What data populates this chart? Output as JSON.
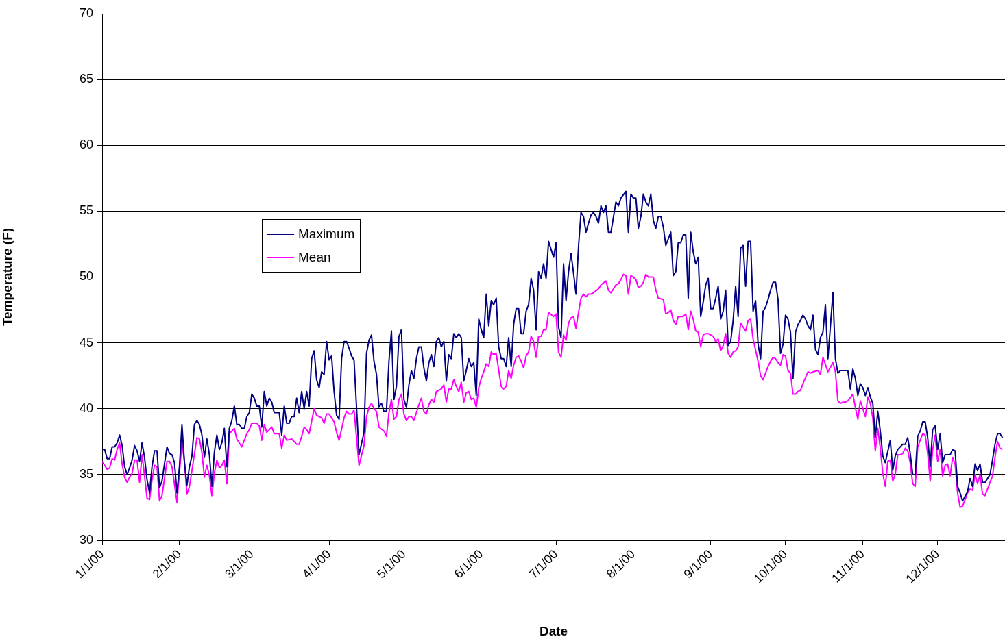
{
  "chart_data": {
    "type": "line",
    "xlabel": "Date",
    "ylabel": "Temperature (F)",
    "ylim": [
      30,
      70
    ],
    "yticks": [
      30,
      35,
      40,
      45,
      50,
      55,
      60,
      65,
      70
    ],
    "xlim": [
      "2000-01-01",
      "2000-12-28"
    ],
    "xticks": [
      {
        "value": "2000-01-01",
        "label": "1/1/00"
      },
      {
        "value": "2000-02-01",
        "label": "2/1/00"
      },
      {
        "value": "2000-03-01",
        "label": "3/1/00"
      },
      {
        "value": "2000-04-01",
        "label": "4/1/00"
      },
      {
        "value": "2000-05-01",
        "label": "5/1/00"
      },
      {
        "value": "2000-06-01",
        "label": "6/1/00"
      },
      {
        "value": "2000-07-01",
        "label": "7/1/00"
      },
      {
        "value": "2000-08-01",
        "label": "8/1/00"
      },
      {
        "value": "2000-09-01",
        "label": "9/1/00"
      },
      {
        "value": "2000-10-01",
        "label": "10/1/00"
      },
      {
        "value": "2000-11-01",
        "label": "11/1/00"
      },
      {
        "value": "2000-12-01",
        "label": "12/1/00"
      }
    ],
    "grid": "y",
    "legend": "left",
    "marker": "none",
    "line_style": "solid",
    "series": [
      {
        "name": "Maximum",
        "color": "#000080",
        "x": [
          "2000-01-01",
          "2000-01-02",
          "2000-01-03",
          "2000-01-04",
          "2000-01-05",
          "2000-01-06",
          "2000-01-07",
          "2000-01-08",
          "2000-01-09",
          "2000-01-10",
          "2000-01-11",
          "2000-01-12",
          "2000-01-13",
          "2000-01-14",
          "2000-01-15",
          "2000-01-16",
          "2000-01-17",
          "2000-01-18",
          "2000-01-19",
          "2000-01-20",
          "2000-01-21",
          "2000-01-22",
          "2000-01-23",
          "2000-01-24",
          "2000-01-25",
          "2000-01-27",
          "2000-01-28",
          "2000-01-29",
          "2000-01-30",
          "2000-01-31",
          "2000-02-01",
          "2000-02-02",
          "2000-02-03",
          "2000-02-04",
          "2000-02-05",
          "2000-02-06",
          "2000-02-07",
          "2000-02-08",
          "2000-02-09",
          "2000-02-10",
          "2000-02-11",
          "2000-02-12",
          "2000-02-13",
          "2000-02-14",
          "2000-02-15",
          "2000-02-16",
          "2000-02-17",
          "2000-02-18",
          "2000-02-19",
          "2000-02-20",
          "2000-02-21",
          "2000-02-22",
          "2000-02-23",
          "2000-02-24",
          "2000-02-25",
          "2000-02-26",
          "2000-02-27",
          "2000-02-28",
          "2000-02-29",
          "2000-03-01",
          "2000-03-02",
          "2000-03-03",
          "2000-03-04",
          "2000-03-05",
          "2000-03-06",
          "2000-03-07",
          "2000-03-08",
          "2000-03-09",
          "2000-03-10",
          "2000-03-12",
          "2000-03-13",
          "2000-03-14",
          "2000-03-15",
          "2000-03-16",
          "2000-03-17",
          "2000-03-18",
          "2000-03-19",
          "2000-03-20",
          "2000-03-21",
          "2000-03-22",
          "2000-03-23",
          "2000-03-24",
          "2000-03-25",
          "2000-03-26",
          "2000-03-27",
          "2000-03-28",
          "2000-03-29",
          "2000-03-30",
          "2000-03-31",
          "2000-04-01",
          "2000-04-02",
          "2000-04-03",
          "2000-04-04",
          "2000-04-05",
          "2000-04-06",
          "2000-04-07",
          "2000-04-08",
          "2000-04-09",
          "2000-04-10",
          "2000-04-11",
          "2000-04-13",
          "2000-04-15",
          "2000-04-16",
          "2000-04-17",
          "2000-04-18",
          "2000-04-19",
          "2000-04-20",
          "2000-04-21",
          "2000-04-22",
          "2000-04-23",
          "2000-04-24",
          "2000-04-25",
          "2000-04-26",
          "2000-04-27",
          "2000-04-28",
          "2000-04-29",
          "2000-04-30",
          "2000-05-01",
          "2000-05-02",
          "2000-05-03",
          "2000-05-04",
          "2000-05-05",
          "2000-05-06",
          "2000-05-07",
          "2000-05-08",
          "2000-05-09",
          "2000-05-10",
          "2000-05-11",
          "2000-05-12",
          "2000-05-13",
          "2000-05-14",
          "2000-05-15",
          "2000-05-16",
          "2000-05-17",
          "2000-05-18",
          "2000-05-19",
          "2000-05-20",
          "2000-05-21",
          "2000-05-22",
          "2000-05-23",
          "2000-05-24",
          "2000-05-25",
          "2000-05-26",
          "2000-05-27",
          "2000-05-28",
          "2000-05-29",
          "2000-05-30",
          "2000-05-31",
          "2000-06-01",
          "2000-06-02",
          "2000-06-03",
          "2000-06-04",
          "2000-06-05",
          "2000-06-06",
          "2000-06-07",
          "2000-06-08",
          "2000-06-09",
          "2000-06-10",
          "2000-06-11",
          "2000-06-12",
          "2000-06-13",
          "2000-06-14",
          "2000-06-15",
          "2000-06-16",
          "2000-06-17",
          "2000-06-18",
          "2000-06-19",
          "2000-06-20",
          "2000-06-21",
          "2000-06-22",
          "2000-06-23",
          "2000-06-24",
          "2000-06-25",
          "2000-06-26",
          "2000-06-27",
          "2000-06-28",
          "2000-06-30",
          "2000-07-01",
          "2000-07-02",
          "2000-07-03",
          "2000-07-04",
          "2000-07-05",
          "2000-07-06",
          "2000-07-07",
          "2000-07-08",
          "2000-07-09",
          "2000-07-10",
          "2000-07-11",
          "2000-07-12",
          "2000-07-13",
          "2000-07-14",
          "2000-07-15",
          "2000-07-16",
          "2000-07-17",
          "2000-07-18",
          "2000-07-19",
          "2000-07-20",
          "2000-07-21",
          "2000-07-22",
          "2000-07-23",
          "2000-07-25",
          "2000-07-26",
          "2000-07-27",
          "2000-07-29",
          "2000-07-30",
          "2000-07-31",
          "2000-08-01",
          "2000-08-02",
          "2000-08-03",
          "2000-08-04",
          "2000-08-05",
          "2000-08-06",
          "2000-08-07",
          "2000-08-08",
          "2000-08-09",
          "2000-08-10",
          "2000-08-11",
          "2000-08-12",
          "2000-08-13",
          "2000-08-14",
          "2000-08-15",
          "2000-08-16",
          "2000-08-17",
          "2000-08-18",
          "2000-08-19",
          "2000-08-20",
          "2000-08-21",
          "2000-08-22",
          "2000-08-23",
          "2000-08-24",
          "2000-08-25",
          "2000-08-26",
          "2000-08-27",
          "2000-08-28",
          "2000-08-29",
          "2000-08-30",
          "2000-08-31",
          "2000-09-01",
          "2000-09-02",
          "2000-09-03",
          "2000-09-04",
          "2000-09-05",
          "2000-09-06",
          "2000-09-07",
          "2000-09-08",
          "2000-09-09",
          "2000-09-10",
          "2000-09-11",
          "2000-09-12",
          "2000-09-13",
          "2000-09-14",
          "2000-09-15",
          "2000-09-16",
          "2000-09-17",
          "2000-09-18",
          "2000-09-19",
          "2000-09-20",
          "2000-09-21",
          "2000-09-22",
          "2000-09-23",
          "2000-09-24",
          "2000-09-25",
          "2000-09-26",
          "2000-09-27",
          "2000-09-28",
          "2000-09-29",
          "2000-09-30",
          "2000-10-01",
          "2000-10-02",
          "2000-10-03",
          "2000-10-04",
          "2000-10-05",
          "2000-10-06",
          "2000-10-07",
          "2000-10-08",
          "2000-10-09",
          "2000-10-10",
          "2000-10-11",
          "2000-10-12",
          "2000-10-13",
          "2000-10-14",
          "2000-10-15",
          "2000-10-16",
          "2000-10-17",
          "2000-10-18",
          "2000-10-20",
          "2000-10-21",
          "2000-10-22",
          "2000-10-23",
          "2000-10-26",
          "2000-10-27",
          "2000-10-28",
          "2000-10-29",
          "2000-10-30",
          "2000-10-31",
          "2000-11-01",
          "2000-11-02",
          "2000-11-03",
          "2000-11-04",
          "2000-11-05",
          "2000-11-06",
          "2000-11-07",
          "2000-11-08",
          "2000-11-09",
          "2000-11-10",
          "2000-11-12",
          "2000-11-13",
          "2000-11-14",
          "2000-11-15",
          "2000-11-17",
          "2000-11-18",
          "2000-11-19",
          "2000-11-20",
          "2000-11-21",
          "2000-11-22",
          "2000-11-23",
          "2000-11-24",
          "2000-11-25",
          "2000-11-26",
          "2000-11-27",
          "2000-11-28",
          "2000-11-29",
          "2000-11-30",
          "2000-12-01",
          "2000-12-02",
          "2000-12-03",
          "2000-12-04",
          "2000-12-06",
          "2000-12-07",
          "2000-12-08",
          "2000-12-09",
          "2000-12-10",
          "2000-12-11",
          "2000-12-13",
          "2000-12-14",
          "2000-12-15",
          "2000-12-16",
          "2000-12-17",
          "2000-12-18",
          "2000-12-19",
          "2000-12-20",
          "2000-12-22",
          "2000-12-23",
          "2000-12-24",
          "2000-12-25",
          "2000-12-26",
          "2000-12-27"
        ],
        "values": [
          36.9,
          36.9,
          36.2,
          36.2,
          37.1,
          37.1,
          37.4,
          38.0,
          37.2,
          35.6,
          35.0,
          35.5,
          36.1,
          37.2,
          36.8,
          36.0,
          37.4,
          36.3,
          34.6,
          33.6,
          35.6,
          36.8,
          36.8,
          34.0,
          34.5,
          37.1,
          36.6,
          36.5,
          35.9,
          33.6,
          35.6,
          38.8,
          35.9,
          34.2,
          35.6,
          36.4,
          38.8,
          39.1,
          38.8,
          38.0,
          36.3,
          37.7,
          36.5,
          34.1,
          36.7,
          38.0,
          36.9,
          37.4,
          38.5,
          35.6,
          38.5,
          39.1,
          40.2,
          38.8,
          38.8,
          38.5,
          38.5,
          39.4,
          39.7,
          41.1,
          40.8,
          40.2,
          40.2,
          38.6,
          41.3,
          40.2,
          40.8,
          40.5,
          39.7,
          39.7,
          38.0,
          40.2,
          38.9,
          38.9,
          39.4,
          39.4,
          40.8,
          39.7,
          41.3,
          40.0,
          41.3,
          40.2,
          43.8,
          44.4,
          42.2,
          41.6,
          42.8,
          42.6,
          45.1,
          43.7,
          44.0,
          41.3,
          39.5,
          39.2,
          43.8,
          45.1,
          45.1,
          44.6,
          44.0,
          43.7,
          36.5,
          38.2,
          44.2,
          45.2,
          45.6,
          43.6,
          42.6,
          40.1,
          40.4,
          39.8,
          39.8,
          43.6,
          45.9,
          40.7,
          41.7,
          45.5,
          46.0,
          40.7,
          40.1,
          41.8,
          42.9,
          42.3,
          43.8,
          44.7,
          44.7,
          43.1,
          42.1,
          43.5,
          44.1,
          43.2,
          45.1,
          45.4,
          44.7,
          45.1,
          42.1,
          44.1,
          43.8,
          45.7,
          45.4,
          45.7,
          45.4,
          42.1,
          42.9,
          43.8,
          43.2,
          43.5,
          41.0,
          46.8,
          46.0,
          45.4,
          48.7,
          46.3,
          48.2,
          47.9,
          48.4,
          44.7,
          43.8,
          43.8,
          43.2,
          45.4,
          43.2,
          46.4,
          47.6,
          47.6,
          45.7,
          45.7,
          47.4,
          47.9,
          49.9,
          49.0,
          46.0,
          50.4,
          49.9,
          51.0,
          49.9,
          52.7,
          51.5,
          52.6,
          46.2,
          45.4,
          51.0,
          48.2,
          50.4,
          51.8,
          50.3,
          48.7,
          52.3,
          54.9,
          54.6,
          53.4,
          54.1,
          54.7,
          54.9,
          54.6,
          54.1,
          55.4,
          54.9,
          55.4,
          53.4,
          53.4,
          55.7,
          55.4,
          56.0,
          56.5,
          53.4,
          56.3,
          56.0,
          56.0,
          53.7,
          54.6,
          56.3,
          55.7,
          55.4,
          56.3,
          54.3,
          53.7,
          54.6,
          54.6,
          53.8,
          52.4,
          52.9,
          53.4,
          50.1,
          50.4,
          52.6,
          52.6,
          53.2,
          53.2,
          48.4,
          53.4,
          51.9,
          51.0,
          51.5,
          47.0,
          48.1,
          49.4,
          49.9,
          47.6,
          47.6,
          48.4,
          49.3,
          46.8,
          47.4,
          49.0,
          44.8,
          45.1,
          46.7,
          49.3,
          47.0,
          52.2,
          52.4,
          49.3,
          52.7,
          52.7,
          47.4,
          48.2,
          44.9,
          43.8,
          47.4,
          47.7,
          48.3,
          49.0,
          49.6,
          49.6,
          48.3,
          44.2,
          44.9,
          47.1,
          46.8,
          45.8,
          42.3,
          45.8,
          46.4,
          46.7,
          47.1,
          46.8,
          46.3,
          46.0,
          47.1,
          44.5,
          44.1,
          45.4,
          45.8,
          47.9,
          43.8,
          48.8,
          43.8,
          42.7,
          42.9,
          42.9,
          41.5,
          43.0,
          42.3,
          41.0,
          41.9,
          41.6,
          41.0,
          41.6,
          40.9,
          40.4,
          37.8,
          39.8,
          38.3,
          36.4,
          35.9,
          37.6,
          35.3,
          36.4,
          36.9,
          37.3,
          37.3,
          37.8,
          36.6,
          35.0,
          35.0,
          37.9,
          38.3,
          39.0,
          39.0,
          37.8,
          35.6,
          38.4,
          38.7,
          36.9,
          38.1,
          35.9,
          36.5,
          36.5,
          36.9,
          36.8,
          34.1,
          33.6,
          33.0,
          33.7,
          34.7,
          34.1,
          35.8,
          35.3,
          35.8,
          34.4,
          34.4,
          35.0,
          36.1,
          37.3,
          38.1,
          38.1,
          37.8
        ]
      },
      {
        "name": "Mean",
        "color": "#ff00ff",
        "x": [
          "2000-01-01",
          "2000-01-02",
          "2000-01-03",
          "2000-01-04",
          "2000-01-05",
          "2000-01-06",
          "2000-01-07",
          "2000-01-08",
          "2000-01-09",
          "2000-01-10",
          "2000-01-11",
          "2000-01-12",
          "2000-01-13",
          "2000-01-14",
          "2000-01-15",
          "2000-01-16",
          "2000-01-17",
          "2000-01-18",
          "2000-01-19",
          "2000-01-20",
          "2000-01-21",
          "2000-01-22",
          "2000-01-23",
          "2000-01-24",
          "2000-01-25",
          "2000-01-27",
          "2000-01-28",
          "2000-01-29",
          "2000-01-31",
          "2000-02-02",
          "2000-02-03",
          "2000-02-04",
          "2000-02-05",
          "2000-02-06",
          "2000-02-08",
          "2000-02-09",
          "2000-02-10",
          "2000-02-11",
          "2000-02-12",
          "2000-02-13",
          "2000-02-14",
          "2000-02-15",
          "2000-02-16",
          "2000-02-17",
          "2000-02-18",
          "2000-02-19",
          "2000-02-20",
          "2000-02-21",
          "2000-02-23",
          "2000-02-24",
          "2000-02-26",
          "2000-02-28",
          "2000-02-29",
          "2000-03-01",
          "2000-03-02",
          "2000-03-03",
          "2000-03-04",
          "2000-03-05",
          "2000-03-06",
          "2000-03-07",
          "2000-03-09",
          "2000-03-10",
          "2000-03-12",
          "2000-03-13",
          "2000-03-14",
          "2000-03-15",
          "2000-03-17",
          "2000-03-19",
          "2000-03-20",
          "2000-03-21",
          "2000-03-22",
          "2000-03-23",
          "2000-03-24",
          "2000-03-26",
          "2000-03-27",
          "2000-03-29",
          "2000-03-30",
          "2000-03-31",
          "2000-04-01",
          "2000-04-03",
          "2000-04-04",
          "2000-04-05",
          "2000-04-07",
          "2000-04-08",
          "2000-04-09",
          "2000-04-10",
          "2000-04-11",
          "2000-04-13",
          "2000-04-15",
          "2000-04-16",
          "2000-04-17",
          "2000-04-18",
          "2000-04-19",
          "2000-04-20",
          "2000-04-21",
          "2000-04-23",
          "2000-04-24",
          "2000-04-25",
          "2000-04-26",
          "2000-04-27",
          "2000-04-28",
          "2000-04-29",
          "2000-04-30",
          "2000-05-01",
          "2000-05-02",
          "2000-05-03",
          "2000-05-04",
          "2000-05-05",
          "2000-05-07",
          "2000-05-08",
          "2000-05-09",
          "2000-05-10",
          "2000-05-11",
          "2000-05-12",
          "2000-05-13",
          "2000-05-14",
          "2000-05-16",
          "2000-05-17",
          "2000-05-18",
          "2000-05-19",
          "2000-05-20",
          "2000-05-21",
          "2000-05-22",
          "2000-05-23",
          "2000-05-24",
          "2000-05-25",
          "2000-05-26",
          "2000-05-27",
          "2000-05-28",
          "2000-05-29",
          "2000-05-30",
          "2000-05-31",
          "2000-06-01",
          "2000-06-02",
          "2000-06-03",
          "2000-06-04",
          "2000-06-05",
          "2000-06-06",
          "2000-06-07",
          "2000-06-09",
          "2000-06-10",
          "2000-06-11",
          "2000-06-12",
          "2000-06-13",
          "2000-06-14",
          "2000-06-15",
          "2000-06-16",
          "2000-06-17",
          "2000-06-18",
          "2000-06-19",
          "2000-06-20",
          "2000-06-21",
          "2000-06-22",
          "2000-06-23",
          "2000-06-24",
          "2000-06-25",
          "2000-06-26",
          "2000-06-27",
          "2000-06-28",
          "2000-06-30",
          "2000-07-01",
          "2000-07-02",
          "2000-07-03",
          "2000-07-04",
          "2000-07-05",
          "2000-07-06",
          "2000-07-07",
          "2000-07-08",
          "2000-07-09",
          "2000-07-10",
          "2000-07-11",
          "2000-07-12",
          "2000-07-13",
          "2000-07-14",
          "2000-07-15",
          "2000-07-16",
          "2000-07-18",
          "2000-07-19",
          "2000-07-21",
          "2000-07-22",
          "2000-07-23",
          "2000-07-25",
          "2000-07-26",
          "2000-07-27",
          "2000-07-28",
          "2000-07-29",
          "2000-07-30",
          "2000-07-31",
          "2000-08-01",
          "2000-08-02",
          "2000-08-03",
          "2000-08-04",
          "2000-08-05",
          "2000-08-06",
          "2000-08-07",
          "2000-08-09",
          "2000-08-10",
          "2000-08-11",
          "2000-08-13",
          "2000-08-14",
          "2000-08-15",
          "2000-08-16",
          "2000-08-17",
          "2000-08-18",
          "2000-08-19",
          "2000-08-21",
          "2000-08-22",
          "2000-08-23",
          "2000-08-24",
          "2000-08-25",
          "2000-08-26",
          "2000-08-27",
          "2000-08-28",
          "2000-08-29",
          "2000-08-30",
          "2000-08-31",
          "2000-09-02",
          "2000-09-03",
          "2000-09-04",
          "2000-09-05",
          "2000-09-06",
          "2000-09-07",
          "2000-09-08",
          "2000-09-09",
          "2000-09-10",
          "2000-09-11",
          "2000-09-12",
          "2000-09-13",
          "2000-09-15",
          "2000-09-16",
          "2000-09-17",
          "2000-09-18",
          "2000-09-20",
          "2000-09-21",
          "2000-09-22",
          "2000-09-24",
          "2000-09-25",
          "2000-09-26",
          "2000-09-27",
          "2000-09-28",
          "2000-09-29",
          "2000-09-30",
          "2000-10-01",
          "2000-10-02",
          "2000-10-03",
          "2000-10-04",
          "2000-10-05",
          "2000-10-06",
          "2000-10-07",
          "2000-10-08",
          "2000-10-10",
          "2000-10-11",
          "2000-10-12",
          "2000-10-14",
          "2000-10-15",
          "2000-10-16",
          "2000-10-18",
          "2000-10-20",
          "2000-10-21",
          "2000-10-22",
          "2000-10-23",
          "2000-10-24",
          "2000-10-25",
          "2000-10-26",
          "2000-10-28",
          "2000-10-29",
          "2000-10-30",
          "2000-10-31",
          "2000-11-02",
          "2000-11-03",
          "2000-11-04",
          "2000-11-05",
          "2000-11-06",
          "2000-11-07",
          "2000-11-08",
          "2000-11-09",
          "2000-11-10",
          "2000-11-11",
          "2000-11-12",
          "2000-11-13",
          "2000-11-14",
          "2000-11-15",
          "2000-11-16",
          "2000-11-17",
          "2000-11-18",
          "2000-11-19",
          "2000-11-20",
          "2000-11-21",
          "2000-11-22",
          "2000-11-23",
          "2000-11-24",
          "2000-11-25",
          "2000-11-26",
          "2000-11-27",
          "2000-11-28",
          "2000-11-29",
          "2000-11-30",
          "2000-12-01",
          "2000-12-02",
          "2000-12-03",
          "2000-12-04",
          "2000-12-05",
          "2000-12-06",
          "2000-12-07",
          "2000-12-08",
          "2000-12-09",
          "2000-12-10",
          "2000-12-11",
          "2000-12-13",
          "2000-12-14",
          "2000-12-15",
          "2000-12-16",
          "2000-12-17",
          "2000-12-18",
          "2000-12-19",
          "2000-12-20",
          "2000-12-22",
          "2000-12-23",
          "2000-12-24",
          "2000-12-25",
          "2000-12-26",
          "2000-12-27"
        ],
        "values": [
          36.0,
          35.7,
          35.4,
          35.5,
          36.2,
          36.1,
          36.9,
          37.4,
          35.8,
          34.8,
          34.4,
          34.8,
          35.1,
          36.1,
          36.1,
          34.4,
          36.5,
          34.9,
          33.2,
          33.1,
          34.6,
          35.7,
          35.6,
          33.0,
          33.4,
          36.0,
          36.0,
          35.6,
          32.9,
          37.4,
          36.0,
          33.5,
          34.1,
          35.3,
          37.8,
          37.7,
          36.7,
          34.8,
          35.7,
          34.9,
          33.4,
          35.1,
          36.1,
          35.5,
          35.7,
          36.1,
          34.3,
          38.1,
          38.5,
          37.7,
          37.1,
          38.1,
          38.4,
          38.9,
          38.9,
          38.9,
          38.7,
          37.6,
          38.8,
          38.2,
          38.6,
          38.1,
          38.1,
          37.0,
          38.0,
          37.6,
          37.7,
          37.3,
          37.3,
          37.9,
          38.6,
          38.4,
          38.1,
          40.0,
          39.5,
          39.3,
          38.9,
          39.6,
          39.6,
          39.0,
          38.2,
          37.6,
          39.3,
          39.8,
          39.6,
          39.6,
          39.9,
          35.7,
          37.2,
          39.4,
          40.1,
          40.4,
          40.0,
          39.8,
          38.6,
          38.3,
          37.9,
          39.7,
          40.7,
          39.2,
          39.4,
          40.7,
          41.1,
          39.6,
          39.1,
          39.4,
          39.4,
          39.1,
          40.3,
          40.8,
          39.8,
          39.6,
          40.3,
          40.7,
          40.5,
          41.3,
          41.5,
          41.8,
          40.5,
          41.5,
          41.5,
          42.2,
          41.7,
          41.3,
          42.0,
          40.5,
          41.2,
          41.3,
          40.7,
          40.8,
          40.1,
          41.6,
          42.3,
          42.8,
          43.4,
          43.2,
          44.3,
          44.1,
          44.2,
          41.7,
          41.5,
          41.7,
          42.9,
          42.3,
          43.3,
          43.9,
          44.0,
          43.6,
          43.1,
          44.0,
          44.3,
          45.5,
          45.1,
          43.9,
          45.5,
          45.5,
          46.0,
          46.0,
          47.3,
          47.0,
          47.2,
          44.3,
          43.9,
          45.6,
          45.2,
          46.5,
          46.9,
          47.0,
          46.1,
          47.3,
          48.4,
          48.7,
          48.5,
          48.7,
          48.7,
          48.8,
          49.1,
          49.4,
          49.7,
          49.0,
          48.8,
          49.4,
          49.5,
          49.8,
          50.2,
          50.1,
          48.7,
          50.1,
          50.0,
          49.8,
          49.2,
          49.3,
          49.6,
          50.2,
          50.0,
          50.0,
          49.0,
          48.4,
          48.3,
          47.2,
          47.3,
          47.5,
          46.7,
          46.4,
          47.0,
          47.0,
          47.2,
          46.0,
          47.4,
          46.8,
          45.9,
          45.8,
          44.7,
          45.6,
          45.7,
          45.7,
          45.5,
          45.1,
          45.3,
          44.4,
          44.8,
          45.7,
          44.2,
          43.9,
          44.3,
          44.4,
          44.7,
          46.5,
          45.9,
          46.7,
          46.8,
          45.3,
          43.6,
          42.5,
          42.2,
          43.2,
          43.6,
          43.9,
          43.8,
          43.5,
          43.3,
          44.1,
          44.0,
          42.9,
          42.7,
          41.1,
          41.1,
          41.3,
          41.4,
          41.9,
          42.8,
          42.7,
          42.8,
          42.9,
          42.6,
          43.9,
          42.8,
          43.5,
          42.8,
          40.6,
          40.4,
          40.5,
          40.5,
          40.6,
          41.1,
          40.1,
          39.2,
          40.6,
          39.4,
          40.9,
          40.4,
          39.3,
          36.8,
          38.5,
          37.0,
          35.1,
          34.1,
          36.0,
          36.1,
          34.5,
          35.0,
          36.5,
          36.5,
          36.6,
          37.0,
          36.8,
          35.9,
          34.3,
          34.1,
          37.1,
          37.6,
          38.1,
          38.0,
          36.6,
          34.5,
          36.9,
          38.0,
          36.0,
          36.9,
          34.9,
          35.7,
          35.8,
          34.9,
          36.3,
          35.8,
          33.6,
          32.5,
          32.6,
          33.6,
          33.9,
          33.8,
          35.0,
          34.3,
          35.0,
          33.5,
          33.4,
          34.4,
          34.9,
          36.3,
          37.5,
          37.0,
          36.9
        ]
      }
    ]
  }
}
